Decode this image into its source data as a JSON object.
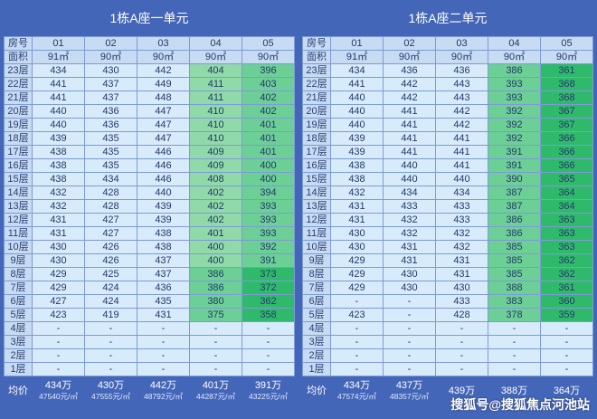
{
  "left": {
    "title": "1栋A座一单元",
    "header_label": "房号",
    "area_label": "面积",
    "avg_label": "均价",
    "rooms": [
      "01",
      "02",
      "03",
      "04",
      "05"
    ],
    "areas": [
      "91㎡",
      "90㎡",
      "90㎡",
      "90㎡",
      "90㎡"
    ],
    "floors": [
      {
        "floor": "23层",
        "prices": [
          "434",
          "430",
          "442",
          "404",
          "396"
        ]
      },
      {
        "floor": "22层",
        "prices": [
          "441",
          "437",
          "449",
          "411",
          "403"
        ]
      },
      {
        "floor": "21层",
        "prices": [
          "441",
          "437",
          "448",
          "411",
          "402"
        ]
      },
      {
        "floor": "20层",
        "prices": [
          "440",
          "436",
          "447",
          "410",
          "402"
        ]
      },
      {
        "floor": "19层",
        "prices": [
          "440",
          "436",
          "447",
          "410",
          "401"
        ]
      },
      {
        "floor": "18层",
        "prices": [
          "439",
          "435",
          "447",
          "410",
          "401"
        ]
      },
      {
        "floor": "17层",
        "prices": [
          "438",
          "435",
          "446",
          "409",
          "401"
        ]
      },
      {
        "floor": "16层",
        "prices": [
          "438",
          "435",
          "446",
          "409",
          "400"
        ]
      },
      {
        "floor": "15层",
        "prices": [
          "438",
          "434",
          "446",
          "408",
          "400"
        ]
      },
      {
        "floor": "14层",
        "prices": [
          "432",
          "428",
          "440",
          "402",
          "394"
        ]
      },
      {
        "floor": "13层",
        "prices": [
          "432",
          "428",
          "439",
          "402",
          "393"
        ]
      },
      {
        "floor": "12层",
        "prices": [
          "431",
          "427",
          "439",
          "402",
          "393"
        ]
      },
      {
        "floor": "11层",
        "prices": [
          "431",
          "427",
          "438",
          "401",
          "393"
        ]
      },
      {
        "floor": "10层",
        "prices": [
          "430",
          "426",
          "438",
          "400",
          "392"
        ]
      },
      {
        "floor": "9层",
        "prices": [
          "430",
          "426",
          "437",
          "400",
          "391"
        ]
      },
      {
        "floor": "8层",
        "prices": [
          "429",
          "425",
          "437",
          "386",
          "373"
        ]
      },
      {
        "floor": "7层",
        "prices": [
          "429",
          "424",
          "436",
          "386",
          "372"
        ]
      },
      {
        "floor": "6层",
        "prices": [
          "427",
          "424",
          "435",
          "380",
          "362"
        ]
      },
      {
        "floor": "5层",
        "prices": [
          "423",
          "419",
          "431",
          "375",
          "358"
        ]
      },
      {
        "floor": "4层",
        "prices": [
          "-",
          "-",
          "-",
          "-",
          "-"
        ]
      },
      {
        "floor": "3层",
        "prices": [
          "-",
          "-",
          "-",
          "-",
          "-"
        ]
      },
      {
        "floor": "2层",
        "prices": [
          "-",
          "-",
          "-",
          "-",
          "-"
        ]
      },
      {
        "floor": "1层",
        "prices": [
          "-",
          "-",
          "-",
          "-",
          "-"
        ]
      }
    ],
    "averages": [
      {
        "total": "434万",
        "unit": "47540元/㎡"
      },
      {
        "total": "430万",
        "unit": "47555元/㎡"
      },
      {
        "total": "442万",
        "unit": "48792元/㎡"
      },
      {
        "total": "401万",
        "unit": "44287元/㎡"
      },
      {
        "total": "391万",
        "unit": "43225元/㎡"
      }
    ]
  },
  "right": {
    "title": "1栋A座二单元",
    "header_label": "房号",
    "area_label": "面积",
    "avg_label": "均价",
    "rooms": [
      "01",
      "02",
      "03",
      "04",
      "05"
    ],
    "areas": [
      "91㎡",
      "90㎡",
      "90㎡",
      "90㎡",
      "90㎡"
    ],
    "floors": [
      {
        "floor": "23层",
        "prices": [
          "434",
          "436",
          "436",
          "386",
          "361"
        ]
      },
      {
        "floor": "22层",
        "prices": [
          "441",
          "442",
          "443",
          "393",
          "368"
        ]
      },
      {
        "floor": "21层",
        "prices": [
          "440",
          "442",
          "443",
          "393",
          "368"
        ]
      },
      {
        "floor": "20层",
        "prices": [
          "440",
          "441",
          "442",
          "392",
          "367"
        ]
      },
      {
        "floor": "19层",
        "prices": [
          "440",
          "441",
          "442",
          "392",
          "367"
        ]
      },
      {
        "floor": "18层",
        "prices": [
          "439",
          "441",
          "441",
          "392",
          "366"
        ]
      },
      {
        "floor": "17层",
        "prices": [
          "439",
          "441",
          "441",
          "391",
          "366"
        ]
      },
      {
        "floor": "16层",
        "prices": [
          "438",
          "440",
          "441",
          "391",
          "366"
        ]
      },
      {
        "floor": "15层",
        "prices": [
          "438",
          "440",
          "440",
          "390",
          "365"
        ]
      },
      {
        "floor": "14层",
        "prices": [
          "432",
          "434",
          "434",
          "387",
          "364"
        ]
      },
      {
        "floor": "13层",
        "prices": [
          "431",
          "433",
          "433",
          "387",
          "364"
        ]
      },
      {
        "floor": "12层",
        "prices": [
          "431",
          "432",
          "433",
          "386",
          "363"
        ]
      },
      {
        "floor": "11层",
        "prices": [
          "430",
          "432",
          "432",
          "386",
          "363"
        ]
      },
      {
        "floor": "10层",
        "prices": [
          "430",
          "431",
          "432",
          "385",
          "363"
        ]
      },
      {
        "floor": "9层",
        "prices": [
          "429",
          "431",
          "431",
          "385",
          "362"
        ]
      },
      {
        "floor": "8层",
        "prices": [
          "429",
          "430",
          "431",
          "385",
          "362"
        ]
      },
      {
        "floor": "7层",
        "prices": [
          "429",
          "430",
          "430",
          "388",
          "361"
        ]
      },
      {
        "floor": "6层",
        "prices": [
          "-",
          "-",
          "433",
          "383",
          "360"
        ]
      },
      {
        "floor": "5层",
        "prices": [
          "423",
          "-",
          "428",
          "378",
          "359"
        ]
      },
      {
        "floor": "4层",
        "prices": [
          "-",
          "-",
          "-",
          "-",
          "-"
        ]
      },
      {
        "floor": "3层",
        "prices": [
          "-",
          "-",
          "-",
          "-",
          "-"
        ]
      },
      {
        "floor": "2层",
        "prices": [
          "-",
          "-",
          "-",
          "-",
          "-"
        ]
      },
      {
        "floor": "1层",
        "prices": [
          "-",
          "-",
          "-",
          "-",
          "-"
        ]
      }
    ],
    "averages": [
      {
        "total": "434万",
        "unit": "47574元/㎡"
      },
      {
        "total": "437万",
        "unit": "48357元/㎡"
      },
      {
        "total": "439万",
        "unit": ""
      },
      {
        "total": "388万",
        "unit": ""
      },
      {
        "total": "364万",
        "unit": ""
      }
    ]
  },
  "colors": {
    "background": "#4466b8",
    "plain_cell": "#d7ebfa",
    "green_light": "#90d9a8",
    "green_mid": "#6ccf95",
    "green_strong": "#41c178",
    "green_dark": "#2fba6b"
  },
  "watermark": "搜狐号@搜狐焦点河池站"
}
